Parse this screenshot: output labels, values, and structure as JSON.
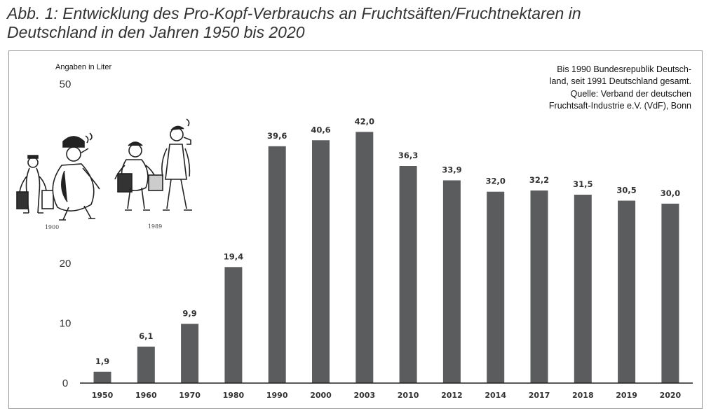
{
  "figure": {
    "title_line1": "Abb. 1: Entwicklung des Pro-Kopf-Verbrauchs an Fruchtsäften/Fruchtnektaren in",
    "title_line2": "Deutschland in den Jahren 1950 bis 2020",
    "note_lines": [
      "Bis 1990 Bundesrepublik Deutsch-",
      "land, seit 1991 Deutschland gesamt.",
      "Quelle: Verband der deutschen",
      "Fruchtsaft-Industrie e.V. (VdF), Bonn"
    ],
    "cartoon_years": [
      "1900",
      "1989"
    ]
  },
  "colors": {
    "bar": "#5b5c5e",
    "axis": "#222222",
    "text": "#333333"
  },
  "chart_data": {
    "type": "bar",
    "title": "Abb. 1: Entwicklung des Pro-Kopf-Verbrauchs an Fruchtsäften/Fruchtnektaren in Deutschland in den Jahren 1950 bis 2020",
    "ylabel": "Angaben in Liter",
    "xlabel": "",
    "ylim": [
      0,
      50
    ],
    "yticks": [
      0,
      10,
      20,
      50
    ],
    "grid": false,
    "categories": [
      "1950",
      "1960",
      "1970",
      "1980",
      "1990",
      "2000",
      "2003",
      "2010",
      "2012",
      "2014",
      "2017",
      "2018",
      "2019",
      "2020"
    ],
    "values": [
      1.9,
      6.1,
      9.9,
      19.4,
      39.6,
      40.6,
      42.0,
      36.3,
      33.9,
      32.0,
      32.2,
      31.5,
      30.5,
      30.0
    ],
    "value_labels": [
      "1,9",
      "6,1",
      "9,9",
      "19,4",
      "39,6",
      "40,6",
      "42,0",
      "36,3",
      "33,9",
      "32,0",
      "32,2",
      "31,5",
      "30,5",
      "30,0"
    ]
  }
}
